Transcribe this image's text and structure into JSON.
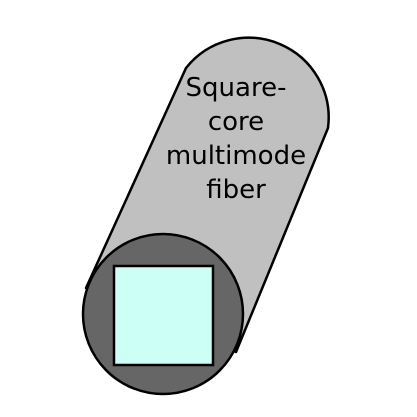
{
  "label": {
    "lines": [
      "Square-",
      "core",
      "multimode",
      "fiber"
    ]
  },
  "colors": {
    "fiber_body": "#c0c0c0",
    "fiber_end_face": "#666666",
    "core": "#ccfff5",
    "outline": "#000000"
  }
}
